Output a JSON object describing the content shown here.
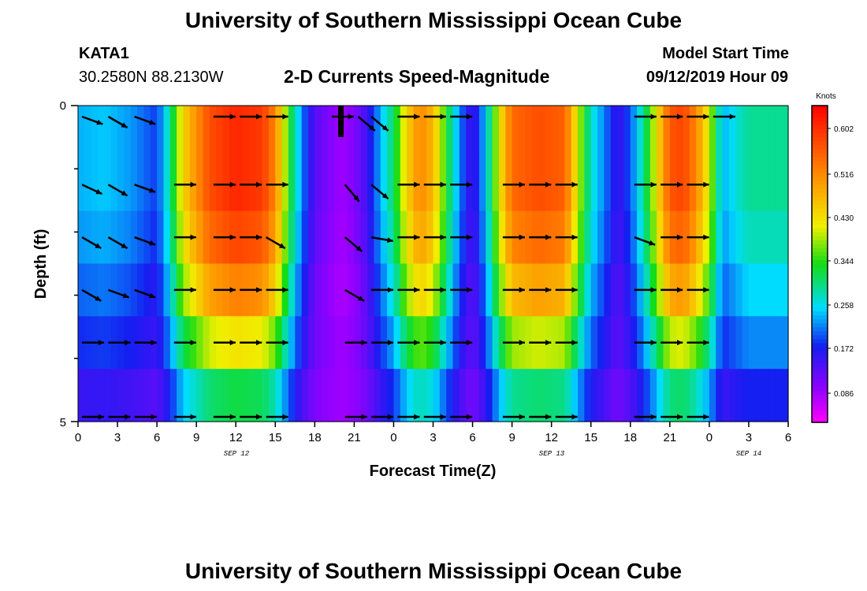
{
  "header": {
    "title_top": "University of Southern Mississippi Ocean Cube",
    "station_id": "KATA1",
    "station_coords": "30.2580N 88.2130W",
    "plot_title": "2-D Currents Speed-Magnitude",
    "model_label": "Model Start Time",
    "model_time": "09/12/2019 Hour 09",
    "title_bottom": "University of Southern Mississippi Ocean Cube"
  },
  "chart_data": {
    "type": "heatmap",
    "title": "2-D Currents Speed-Magnitude",
    "xlabel": "Forecast Time(Z)",
    "ylabel": "Depth (ft)",
    "x_ticks": [
      "0",
      "3",
      "6",
      "9",
      "12",
      "15",
      "18",
      "21",
      "0",
      "3",
      "6",
      "9",
      "12",
      "15",
      "18",
      "21",
      "0",
      "3",
      "6"
    ],
    "x_dates": [
      "SEP 12",
      "SEP 13",
      "SEP 14"
    ],
    "y_ticks": [
      "0",
      "5"
    ],
    "ylim": [
      0,
      5
    ],
    "colorbar": {
      "title": "Knots",
      "labels": [
        "0.602",
        "0.516",
        "0.430",
        "0.344",
        "0.258",
        "0.172",
        "0.086"
      ],
      "range": [
        0.0,
        0.66
      ]
    },
    "layers_depth_ft": [
      "0-0.5",
      "0.5-1.5",
      "1.5-2.5",
      "2.5-3.5",
      "3.5-4.5",
      "4.5-5"
    ],
    "speed_profile_knots": [
      [
        0,
        0.22
      ],
      [
        2,
        0.23
      ],
      [
        4,
        0.21
      ],
      [
        6,
        0.17
      ],
      [
        7,
        0.28
      ],
      [
        8,
        0.44
      ],
      [
        10,
        0.58
      ],
      [
        12,
        0.62
      ],
      [
        14,
        0.6
      ],
      [
        15,
        0.52
      ],
      [
        16,
        0.34
      ],
      [
        17,
        0.2
      ],
      [
        18,
        0.11
      ],
      [
        20,
        0.06
      ],
      [
        21,
        0.08
      ],
      [
        22,
        0.13
      ],
      [
        23,
        0.22
      ],
      [
        24,
        0.3
      ],
      [
        25,
        0.44
      ],
      [
        26,
        0.52
      ],
      [
        27,
        0.47
      ],
      [
        28,
        0.33
      ],
      [
        29,
        0.2
      ],
      [
        30,
        0.12
      ],
      [
        31,
        0.23
      ],
      [
        32,
        0.41
      ],
      [
        33,
        0.55
      ],
      [
        35,
        0.58
      ],
      [
        37,
        0.56
      ],
      [
        38,
        0.4
      ],
      [
        39,
        0.26
      ],
      [
        40,
        0.2
      ],
      [
        41,
        0.13
      ],
      [
        42,
        0.18
      ],
      [
        43,
        0.28
      ],
      [
        44,
        0.42
      ],
      [
        45,
        0.57
      ],
      [
        46,
        0.59
      ],
      [
        47,
        0.52
      ],
      [
        48,
        0.4
      ],
      [
        49,
        0.22
      ],
      [
        51,
        0.28
      ]
    ],
    "depth_factors": [
      1.0,
      1.0,
      0.95,
      0.85,
      0.65,
      0.45
    ],
    "arrows": [
      [
        0,
        0.15,
        -20
      ],
      [
        2,
        0.15,
        -30
      ],
      [
        4,
        0.15,
        -20
      ],
      [
        10,
        0.15,
        0
      ],
      [
        12,
        0.15,
        0
      ],
      [
        14,
        0.15,
        0
      ],
      [
        19,
        0.1,
        0
      ],
      [
        21,
        0.1,
        -40
      ],
      [
        22,
        0.1,
        -40
      ],
      [
        24,
        0.15,
        0
      ],
      [
        26,
        0.15,
        0
      ],
      [
        28,
        0.15,
        0
      ],
      [
        42,
        0.15,
        0
      ],
      [
        44,
        0.15,
        0
      ],
      [
        46,
        0.15,
        0
      ],
      [
        48,
        0.15,
        0
      ],
      [
        0,
        1,
        -25
      ],
      [
        2,
        1,
        -30
      ],
      [
        4,
        1,
        -20
      ],
      [
        7,
        1,
        0
      ],
      [
        10,
        1,
        0
      ],
      [
        12,
        1,
        0
      ],
      [
        14,
        1,
        0
      ],
      [
        20,
        1,
        -50
      ],
      [
        22,
        1,
        -40
      ],
      [
        24,
        1,
        0
      ],
      [
        26,
        1,
        0
      ],
      [
        28,
        1,
        0
      ],
      [
        32,
        1,
        0
      ],
      [
        34,
        1,
        0
      ],
      [
        36,
        1,
        0
      ],
      [
        42,
        1,
        0
      ],
      [
        44,
        1,
        0
      ],
      [
        46,
        1,
        0
      ],
      [
        0,
        2,
        -30
      ],
      [
        2,
        2,
        -30
      ],
      [
        4,
        2,
        -20
      ],
      [
        7,
        2,
        0
      ],
      [
        10,
        2,
        0
      ],
      [
        12,
        2,
        0
      ],
      [
        14,
        2,
        -30
      ],
      [
        20,
        2,
        -40
      ],
      [
        22,
        2,
        -10
      ],
      [
        24,
        2,
        0
      ],
      [
        26,
        2,
        0
      ],
      [
        28,
        2,
        0
      ],
      [
        32,
        2,
        0
      ],
      [
        34,
        2,
        0
      ],
      [
        36,
        2,
        0
      ],
      [
        42,
        2,
        -20
      ],
      [
        44,
        2,
        0
      ],
      [
        46,
        2,
        0
      ],
      [
        0,
        3,
        -30
      ],
      [
        2,
        3,
        -20
      ],
      [
        4,
        3,
        -20
      ],
      [
        7,
        3,
        0
      ],
      [
        10,
        3,
        0
      ],
      [
        12,
        3,
        0
      ],
      [
        14,
        3,
        0
      ],
      [
        20,
        3,
        -30
      ],
      [
        22,
        3,
        0
      ],
      [
        24,
        3,
        0
      ],
      [
        26,
        3,
        0
      ],
      [
        28,
        3,
        0
      ],
      [
        32,
        3,
        0
      ],
      [
        34,
        3,
        0
      ],
      [
        36,
        3,
        0
      ],
      [
        42,
        3,
        0
      ],
      [
        44,
        3,
        0
      ],
      [
        46,
        3,
        0
      ],
      [
        0,
        4,
        0
      ],
      [
        2,
        4,
        0
      ],
      [
        4,
        4,
        0
      ],
      [
        7,
        4,
        0
      ],
      [
        10,
        4,
        0
      ],
      [
        12,
        4,
        0
      ],
      [
        14,
        4,
        0
      ],
      [
        20,
        4,
        0
      ],
      [
        22,
        4,
        0
      ],
      [
        24,
        4,
        0
      ],
      [
        26,
        4,
        0
      ],
      [
        28,
        4,
        0
      ],
      [
        32,
        4,
        0
      ],
      [
        34,
        4,
        0
      ],
      [
        36,
        4,
        0
      ],
      [
        42,
        4,
        0
      ],
      [
        44,
        4,
        0
      ],
      [
        46,
        4,
        0
      ],
      [
        0,
        4.9,
        0
      ],
      [
        2,
        4.9,
        0
      ],
      [
        4,
        4.9,
        0
      ],
      [
        7,
        4.9,
        0
      ],
      [
        10,
        4.9,
        0
      ],
      [
        12,
        4.9,
        0
      ],
      [
        14,
        4.9,
        0
      ],
      [
        20,
        4.9,
        0
      ],
      [
        22,
        4.9,
        0
      ],
      [
        24,
        4.9,
        0
      ],
      [
        26,
        4.9,
        0
      ],
      [
        28,
        4.9,
        0
      ],
      [
        32,
        4.9,
        0
      ],
      [
        34,
        4.9,
        0
      ],
      [
        36,
        4.9,
        0
      ],
      [
        42,
        4.9,
        0
      ],
      [
        44,
        4.9,
        0
      ],
      [
        46,
        4.9,
        0
      ]
    ]
  }
}
